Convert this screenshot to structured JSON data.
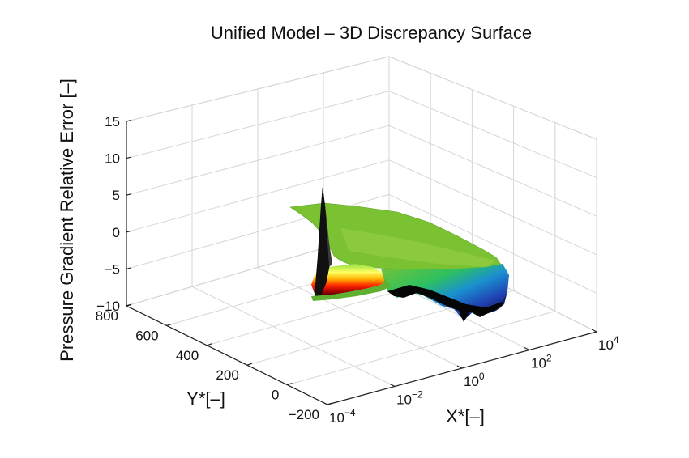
{
  "chart_data": {
    "type": "surface",
    "title": "Unified Model – 3D Discrepancy Surface",
    "xlabel": "X*[–]",
    "ylabel": "Y*[–]",
    "zlabel": "Pressure Gradient Relative Error [–]",
    "x_scale": "log",
    "x_ticks": [
      {
        "value": 0.0001,
        "base": "10",
        "exp": "−4"
      },
      {
        "value": 0.01,
        "base": "10",
        "exp": "−2"
      },
      {
        "value": 1,
        "base": "10",
        "exp": "0"
      },
      {
        "value": 100,
        "base": "10",
        "exp": "2"
      },
      {
        "value": 10000,
        "base": "10",
        "exp": "4"
      }
    ],
    "y_ticks": [
      "−200",
      "0",
      "200",
      "400",
      "600",
      "800"
    ],
    "y_values": [
      -200,
      0,
      200,
      400,
      600,
      800
    ],
    "z_ticks": [
      "−10",
      "−5",
      "0",
      "5",
      "10",
      "15"
    ],
    "z_values": [
      -10,
      -5,
      0,
      5,
      10,
      15
    ],
    "xlim": [
      0.0001,
      10000
    ],
    "ylim": [
      -200,
      800
    ],
    "zlim": [
      -10,
      15
    ],
    "grid": true,
    "colormap": [
      "#000000",
      "#c00000",
      "#ff3000",
      "#ffd000",
      "#ffff60",
      "#90e040",
      "#2ec060",
      "#1a90d0",
      "#2050c0",
      "#000030"
    ],
    "surface_color": "#7ac232"
  }
}
